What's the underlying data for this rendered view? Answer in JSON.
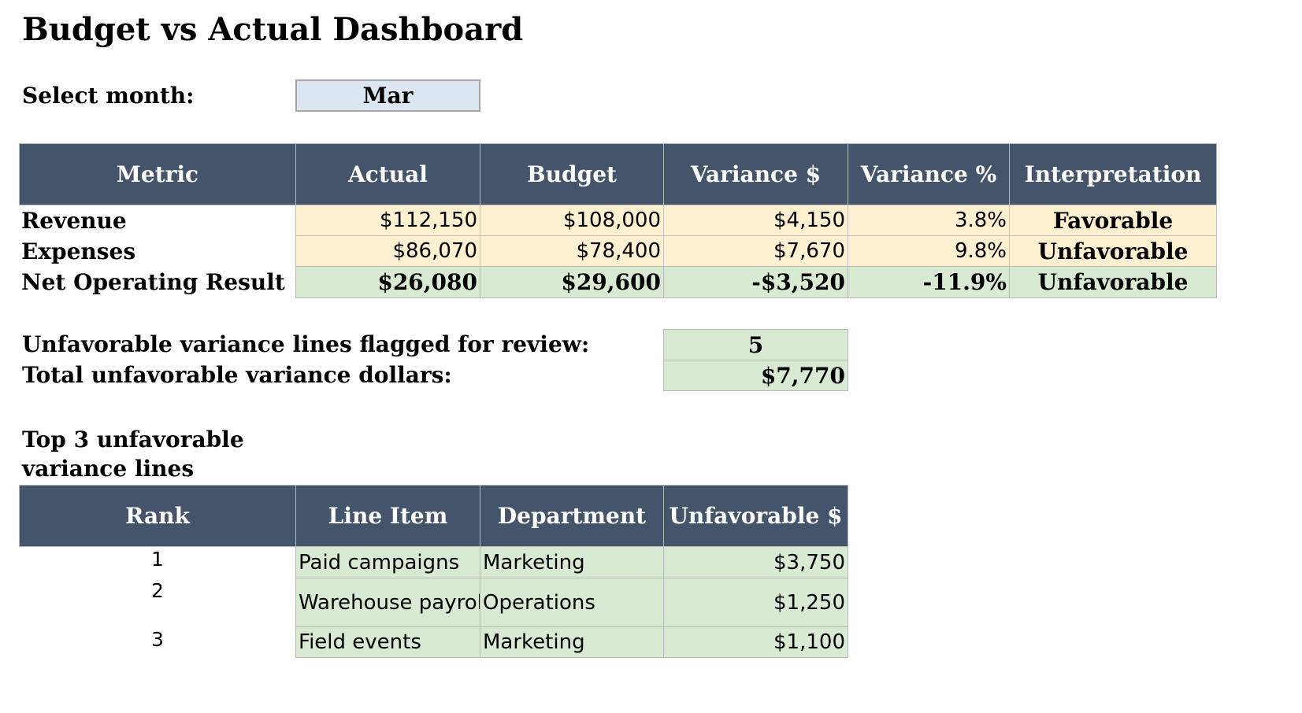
{
  "title": "Budget vs Actual Dashboard",
  "selector": {
    "label": "Select month:",
    "value": "Mar"
  },
  "summary": {
    "headers": [
      "Metric",
      "Actual",
      "Budget",
      "Variance $",
      "Variance %",
      "Interpretation"
    ],
    "rows": [
      {
        "metric": "Revenue",
        "actual": "$112,150",
        "budget": "$108,000",
        "variance": "$4,150",
        "variance_pct": "3.8%",
        "interpretation": "Favorable"
      },
      {
        "metric": "Expenses",
        "actual": "$86,070",
        "budget": "$78,400",
        "variance": "$7,670",
        "variance_pct": "9.8%",
        "interpretation": "Unfavorable"
      },
      {
        "metric": "Net Operating Result",
        "actual": "$26,080",
        "budget": "$29,600",
        "variance": "-$3,520",
        "variance_pct": "-11.9%",
        "interpretation": "Unfavorable"
      }
    ]
  },
  "flags": {
    "flagged_label": "Unfavorable variance lines flagged for review:",
    "flagged_value": "5",
    "total_label": "Total unfavorable variance dollars:",
    "total_value": "$7,770"
  },
  "top3": {
    "title_line1": "Top 3 unfavorable",
    "title_line2": "variance lines",
    "headers": [
      "Rank",
      "Line Item",
      "Department",
      "Unfavorable $"
    ],
    "rows": [
      {
        "rank": "1",
        "line_item": "Paid campaigns",
        "department": "Marketing",
        "amount": "$3,750"
      },
      {
        "rank": "2",
        "line_item": "Warehouse payroll",
        "department": "Operations",
        "amount": "$1,250"
      },
      {
        "rank": "3",
        "line_item": "Field events",
        "department": "Marketing",
        "amount": "$1,100"
      }
    ]
  },
  "colors": {
    "header_bg": "#44546a",
    "input_cell": "#fdf0d0",
    "calc_cell": "#d9ead3",
    "selector_bg": "#dce6f1"
  }
}
